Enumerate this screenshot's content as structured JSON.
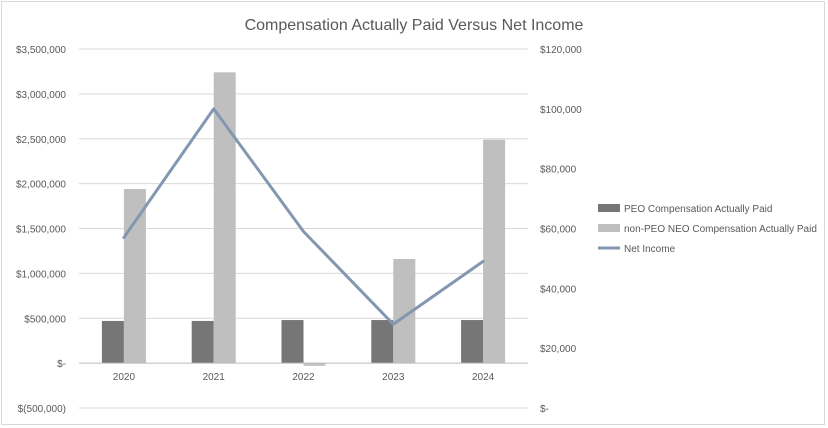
{
  "chart_data": {
    "type": "bar",
    "title": "Compensation Actually Paid Versus Net Income",
    "categories": [
      "2020",
      "2021",
      "2022",
      "2023",
      "2024"
    ],
    "y_left": {
      "ticks": [
        "$(500,000)",
        "$-",
        "$500,000",
        "$1,000,000",
        "$1,500,000",
        "$2,000,000",
        "$2,500,000",
        "$3,000,000",
        "$3,500,000"
      ],
      "range": [
        -500000,
        3500000
      ]
    },
    "y_right": {
      "ticks": [
        "$-",
        "$20,000",
        "$40,000",
        "$60,000",
        "$80,000",
        "$100,000",
        "$120,000"
      ],
      "range": [
        0,
        120000
      ]
    },
    "series": [
      {
        "name": "PEO Compensation Actually Paid",
        "type": "bar",
        "axis": "left",
        "color": "#767676",
        "values": [
          470000,
          470000,
          480000,
          480000,
          480000
        ]
      },
      {
        "name": "non-PEO NEO Compensation Actually Paid",
        "type": "bar",
        "axis": "left",
        "color": "#bfbfbf",
        "values": [
          1940000,
          3240000,
          -30000,
          1160000,
          2490000
        ]
      },
      {
        "name": "Net Income",
        "type": "line",
        "axis": "right",
        "color": "#8497b0",
        "values": [
          57000,
          100000,
          59000,
          28000,
          49000
        ]
      }
    ],
    "grid": true,
    "legend_position": "right"
  }
}
